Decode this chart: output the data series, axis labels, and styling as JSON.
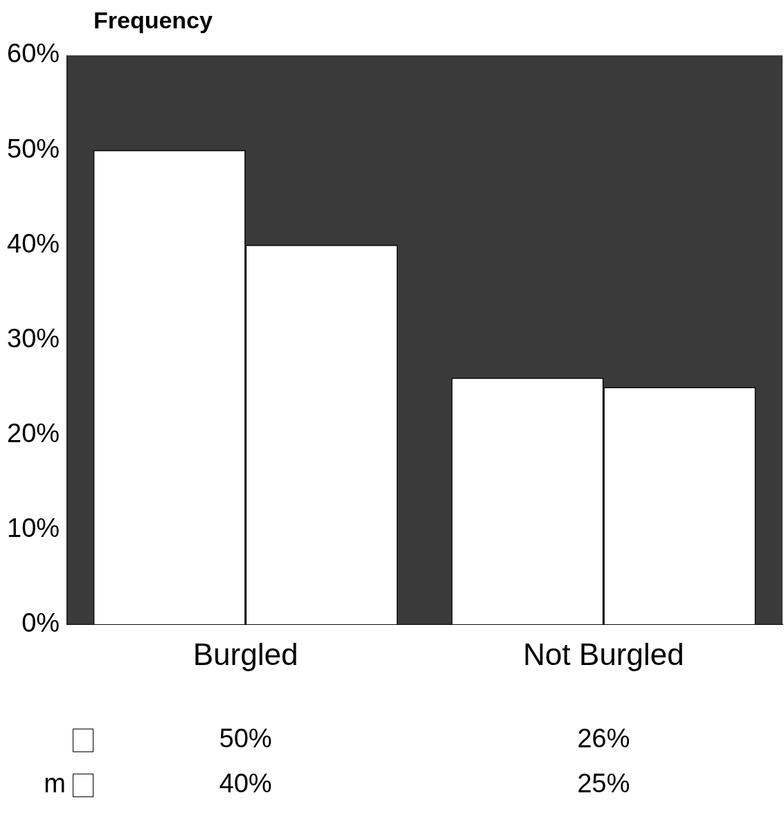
{
  "chart_data": {
    "type": "bar",
    "ylabel": "Frequency",
    "categories": [
      "Burgled",
      "Not Burgled"
    ],
    "series": [
      {
        "color": "#ffffff",
        "values": [
          50,
          26
        ],
        "value_labels": [
          "50%",
          "26%"
        ]
      },
      {
        "name": "m",
        "color": "#ffffff",
        "values": [
          40,
          25
        ],
        "value_labels": [
          "40%",
          "25%"
        ]
      }
    ],
    "ylim": [
      0,
      60
    ],
    "yticks": [
      {
        "value": 0,
        "label": "0%"
      },
      {
        "value": 10,
        "label": "10%"
      },
      {
        "value": 20,
        "label": "20%"
      },
      {
        "value": 30,
        "label": "30%"
      },
      {
        "value": 40,
        "label": "40%"
      },
      {
        "value": 50,
        "label": "50%"
      },
      {
        "value": 60,
        "label": "60%"
      }
    ],
    "grid": false,
    "legend": "bottom left"
  }
}
